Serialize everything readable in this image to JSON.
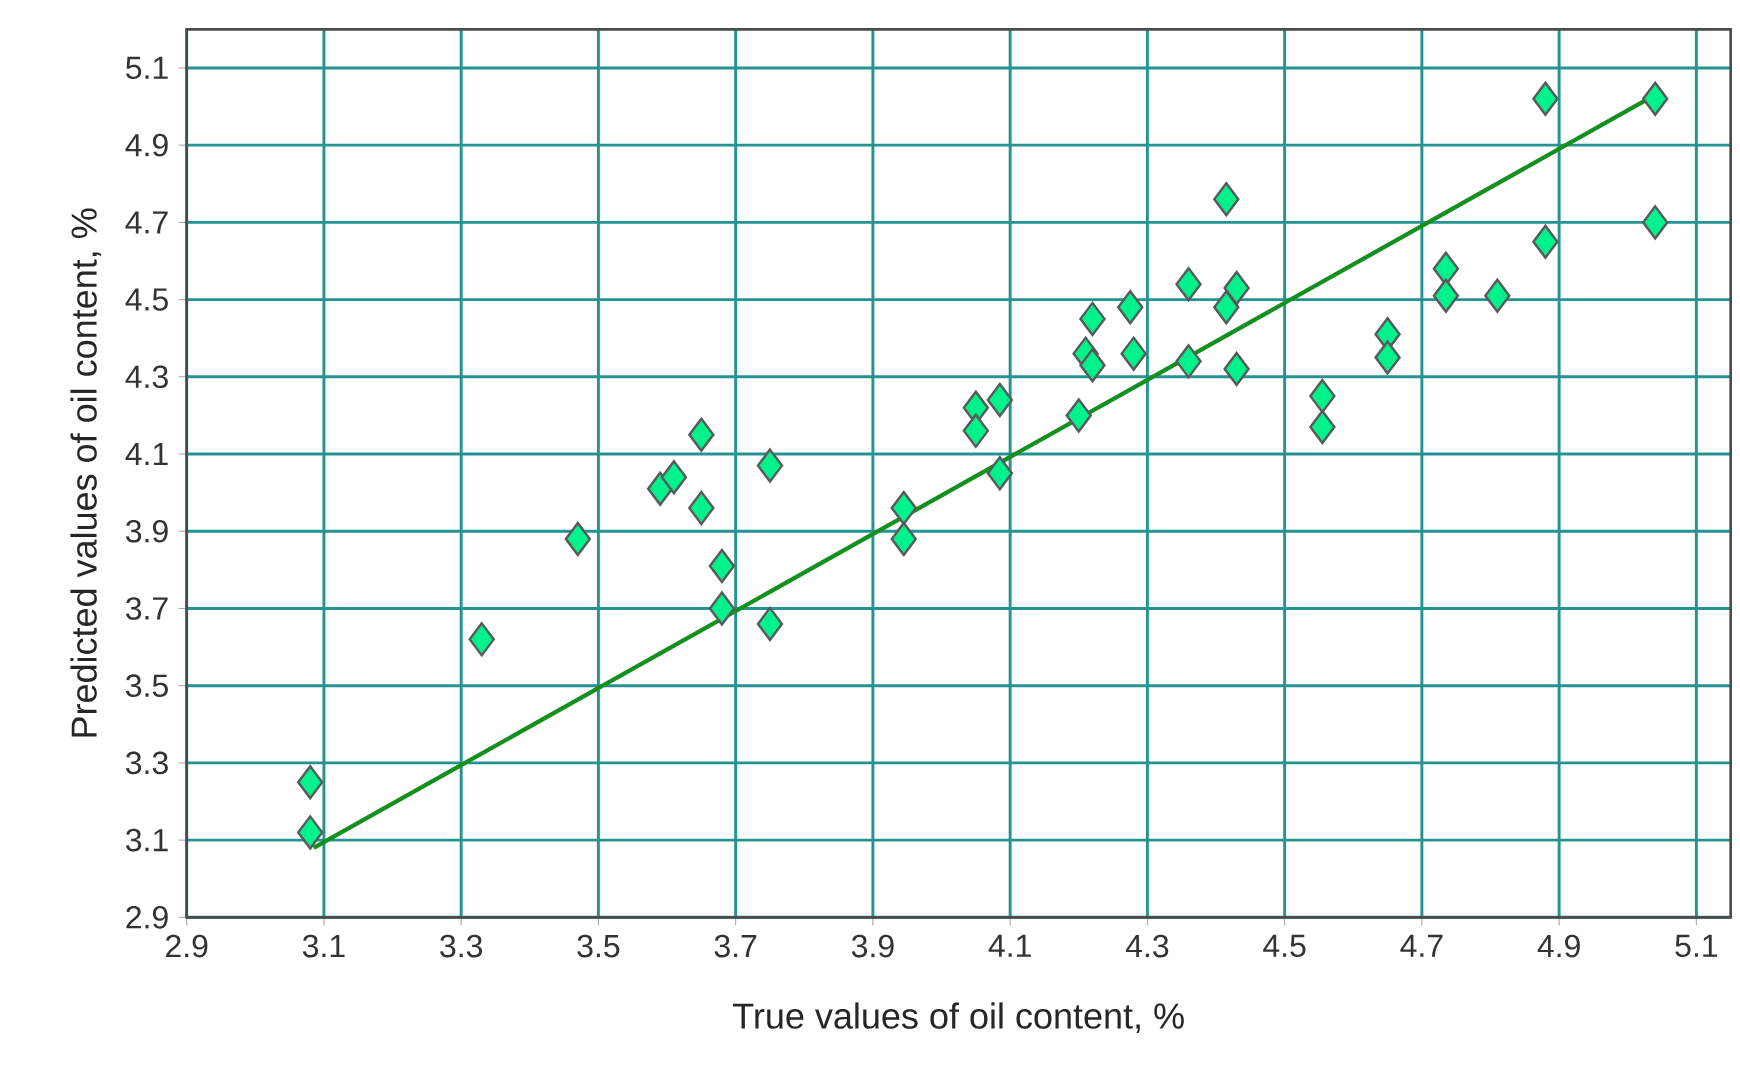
{
  "chart_data": {
    "type": "scatter",
    "xlabel": "True values of oil content, %",
    "ylabel": "Predicted values of oil content, %",
    "xlim": [
      2.9,
      5.15
    ],
    "ylim": [
      2.9,
      5.2
    ],
    "xticks": [
      2.9,
      3.1,
      3.3,
      3.5,
      3.7,
      3.9,
      4.1,
      4.3,
      4.5,
      4.7,
      4.9,
      5.1
    ],
    "yticks": [
      2.9,
      3.1,
      3.3,
      3.5,
      3.7,
      3.9,
      4.1,
      4.3,
      4.5,
      4.7,
      4.9,
      5.1
    ],
    "grid": true,
    "marker": "diamond",
    "series": [
      {
        "color": "#00f28c",
        "x": [
          3.08,
          3.08,
          3.33,
          3.47,
          3.59,
          3.61,
          3.65,
          3.65,
          3.75,
          3.68,
          3.68,
          3.75,
          3.945,
          3.945,
          4.05,
          4.05,
          4.085,
          4.085,
          4.2,
          4.21,
          4.22,
          4.22,
          4.275,
          4.28,
          4.36,
          4.36,
          4.415,
          4.43,
          4.415,
          4.43,
          4.555,
          4.555,
          4.65,
          4.65,
          4.735,
          4.735,
          4.81,
          4.88,
          4.88,
          5.04,
          5.04
        ],
        "values": [
          3.25,
          3.12,
          3.62,
          3.88,
          4.01,
          4.04,
          4.15,
          3.96,
          4.07,
          3.81,
          3.7,
          3.66,
          3.96,
          3.88,
          4.22,
          4.16,
          4.24,
          4.05,
          4.2,
          4.36,
          4.45,
          4.33,
          4.48,
          4.36,
          4.54,
          4.34,
          4.76,
          4.53,
          4.48,
          4.32,
          4.25,
          4.17,
          4.41,
          4.35,
          4.58,
          4.51,
          4.51,
          4.65,
          5.02,
          5.02,
          4.7
        ]
      },
      {
        "type": "line",
        "color": "#14901e",
        "marker": "none",
        "line_style": "solid",
        "x": [
          3.085,
          5.04
        ],
        "values": [
          3.08,
          5.03
        ]
      }
    ]
  }
}
